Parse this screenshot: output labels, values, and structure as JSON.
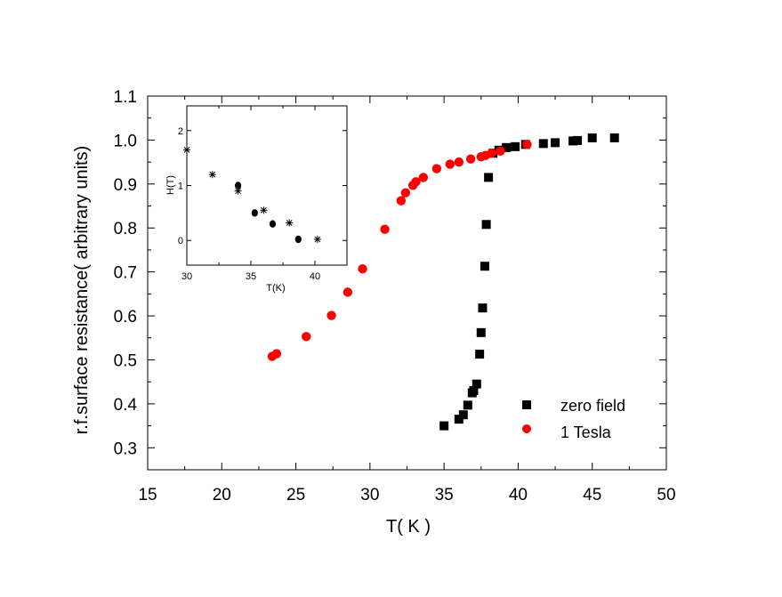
{
  "chart_data": [
    {
      "type": "scatter",
      "title": "",
      "xlabel": "T( K )",
      "ylabel": "r.f.surface resistance( arbitrary units)",
      "xlim": [
        15,
        50
      ],
      "ylim": [
        0.25,
        1.1
      ],
      "xticks": [
        "15",
        "20",
        "25",
        "30",
        "35",
        "40",
        "45",
        "50"
      ],
      "yticks": [
        "0.3",
        "0.4",
        "0.5",
        "0.6",
        "0.7",
        "0.8",
        "0.9",
        "1.0",
        "1.1"
      ],
      "legend_position": "bottom-right",
      "series": [
        {
          "name": "zero field",
          "marker": "square",
          "color": "#000000",
          "x": [
            35.0,
            36.0,
            36.3,
            36.6,
            36.9,
            37.0,
            37.2,
            37.4,
            37.5,
            37.6,
            37.75,
            37.85,
            38.0,
            38.3,
            38.7,
            39.2,
            39.8,
            40.5,
            41.7,
            42.5,
            43.7,
            44.0,
            45.0,
            46.5
          ],
          "y": [
            0.35,
            0.365,
            0.375,
            0.397,
            0.425,
            0.43,
            0.445,
            0.513,
            0.562,
            0.618,
            0.713,
            0.808,
            0.915,
            0.97,
            0.977,
            0.983,
            0.985,
            0.99,
            0.992,
            0.994,
            0.998,
            0.999,
            1.005,
            1.005
          ]
        },
        {
          "name": "1 Tesla",
          "marker": "circle",
          "color": "#ff0000",
          "x": [
            23.4,
            23.7,
            25.7,
            27.4,
            28.5,
            29.5,
            31.0,
            32.1,
            32.4,
            32.9,
            33.1,
            33.6,
            34.5,
            35.4,
            36.0,
            36.8,
            37.5,
            37.8,
            38.2,
            38.8,
            40.6
          ],
          "y": [
            0.508,
            0.514,
            0.553,
            0.601,
            0.654,
            0.707,
            0.797,
            0.862,
            0.88,
            0.897,
            0.905,
            0.915,
            0.935,
            0.945,
            0.95,
            0.957,
            0.962,
            0.965,
            0.97,
            0.975,
            0.99
          ]
        }
      ]
    },
    {
      "type": "scatter",
      "title": "",
      "xlabel": "T(K)",
      "ylabel": "H(T)",
      "xlim": [
        30,
        42.5
      ],
      "ylim": [
        -0.45,
        2.45
      ],
      "xticks": [
        "30",
        "35",
        "40"
      ],
      "yticks": [
        "0",
        "1",
        "2"
      ],
      "series": [
        {
          "marker": "asterisk",
          "color": "#000000",
          "x": [
            30.0,
            32.0,
            34.0,
            36.0,
            38.0,
            40.2
          ],
          "y": [
            1.65,
            1.2,
            0.9,
            0.55,
            0.32,
            0.02
          ]
        },
        {
          "marker": "circle",
          "color": "#000000",
          "x": [
            34.0,
            35.3,
            36.7,
            38.7
          ],
          "y": [
            1.0,
            0.5,
            0.3,
            0.02
          ]
        }
      ]
    }
  ]
}
